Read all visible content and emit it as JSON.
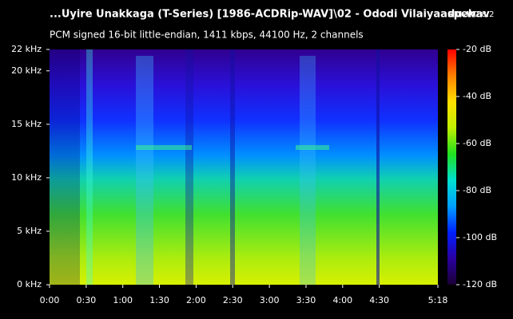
{
  "chart_data": {
    "type": "spectrogram",
    "title": "...Uyire Unakkaga (T-Series) [1986-ACDRip-WAV]\\02 - Ododi Vilaiyaadu.wav",
    "app_name": "spek",
    "version": "0.8.2",
    "subtitle": "PCM signed 16-bit little-endian, 1411 kbps, 44100 Hz, 2 channels",
    "xlim": [
      0,
      318
    ],
    "xticks": [
      {
        "value": 0,
        "label": "0:00"
      },
      {
        "value": 30,
        "label": "0:30"
      },
      {
        "value": 60,
        "label": "1:00"
      },
      {
        "value": 90,
        "label": "1:30"
      },
      {
        "value": 120,
        "label": "2:00"
      },
      {
        "value": 150,
        "label": "2:30"
      },
      {
        "value": 180,
        "label": "3:00"
      },
      {
        "value": 210,
        "label": "3:30"
      },
      {
        "value": 240,
        "label": "4:00"
      },
      {
        "value": 270,
        "label": "4:30"
      },
      {
        "value": 318,
        "label": "5:18"
      }
    ],
    "ylim": [
      0,
      22
    ],
    "yticks": [
      {
        "value": 0,
        "label": "0 kHz"
      },
      {
        "value": 5,
        "label": "5 kHz"
      },
      {
        "value": 10,
        "label": "10 kHz"
      },
      {
        "value": 15,
        "label": "15 kHz"
      },
      {
        "value": 20,
        "label": "20 kHz"
      },
      {
        "value": 22,
        "label": "22 kHz"
      }
    ],
    "clim": [
      -120,
      -20
    ],
    "cticks": [
      {
        "value": -20,
        "label": "-20 dB"
      },
      {
        "value": -40,
        "label": "-40 dB"
      },
      {
        "value": -60,
        "label": "-60 dB"
      },
      {
        "value": -80,
        "label": "-80 dB"
      },
      {
        "value": -100,
        "label": "-100 dB"
      },
      {
        "value": -120,
        "label": "-120 dB"
      }
    ],
    "colormap": [
      "#1a0033",
      "#2a00a0",
      "#0020ff",
      "#00a0ff",
      "#00e0d0",
      "#20e020",
      "#c0f000",
      "#ffe000",
      "#ff8000",
      "#ff0000"
    ]
  }
}
